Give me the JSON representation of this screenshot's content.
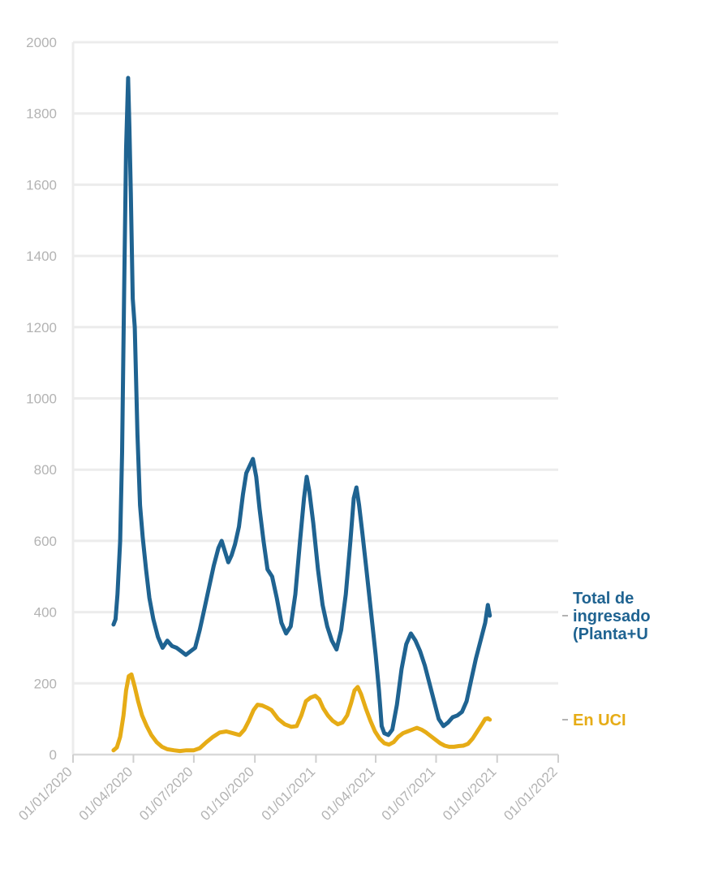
{
  "chart_data": {
    "type": "line",
    "title": "",
    "xlabel": "",
    "ylabel": "",
    "ylim": [
      0,
      2000
    ],
    "xlim": [
      "2020-01-01",
      "2022-01-01"
    ],
    "grid": true,
    "y_ticks": [
      "0",
      "200",
      "400",
      "600",
      "800",
      "1000",
      "1200",
      "1400",
      "1600",
      "1800",
      "2000"
    ],
    "x_ticks": [
      {
        "date": "2020-01-01",
        "label": "01/01/2020"
      },
      {
        "date": "2020-04-01",
        "label": "01/04/2020"
      },
      {
        "date": "2020-07-01",
        "label": "01/07/2020"
      },
      {
        "date": "2020-10-01",
        "label": "01/10/2020"
      },
      {
        "date": "2021-01-01",
        "label": "01/01/2021"
      },
      {
        "date": "2021-04-01",
        "label": "01/04/2021"
      },
      {
        "date": "2021-07-01",
        "label": "01/07/2021"
      },
      {
        "date": "2021-10-01",
        "label": "01/10/2021"
      },
      {
        "date": "2022-01-01",
        "label": "01/01/2022"
      }
    ],
    "series": [
      {
        "name": "Total de ingresados (Planta+UCI)",
        "label_lines": [
          "Total de",
          "ingresado",
          "(Planta+U"
        ],
        "color": "#1f6391",
        "points": [
          {
            "x": "2020-03-02",
            "y": 365
          },
          {
            "x": "2020-03-05",
            "y": 380
          },
          {
            "x": "2020-03-08",
            "y": 450
          },
          {
            "x": "2020-03-12",
            "y": 600
          },
          {
            "x": "2020-03-15",
            "y": 850
          },
          {
            "x": "2020-03-18",
            "y": 1300
          },
          {
            "x": "2020-03-21",
            "y": 1700
          },
          {
            "x": "2020-03-24",
            "y": 1900
          },
          {
            "x": "2020-03-26",
            "y": 1760
          },
          {
            "x": "2020-03-28",
            "y": 1580
          },
          {
            "x": "2020-03-31",
            "y": 1280
          },
          {
            "x": "2020-04-03",
            "y": 1200
          },
          {
            "x": "2020-04-07",
            "y": 900
          },
          {
            "x": "2020-04-11",
            "y": 700
          },
          {
            "x": "2020-04-15",
            "y": 610
          },
          {
            "x": "2020-04-20",
            "y": 520
          },
          {
            "x": "2020-04-25",
            "y": 440
          },
          {
            "x": "2020-05-01",
            "y": 380
          },
          {
            "x": "2020-05-08",
            "y": 330
          },
          {
            "x": "2020-05-15",
            "y": 300
          },
          {
            "x": "2020-05-22",
            "y": 320
          },
          {
            "x": "2020-05-29",
            "y": 305
          },
          {
            "x": "2020-06-05",
            "y": 300
          },
          {
            "x": "2020-06-12",
            "y": 290
          },
          {
            "x": "2020-06-19",
            "y": 280
          },
          {
            "x": "2020-06-26",
            "y": 290
          },
          {
            "x": "2020-07-03",
            "y": 300
          },
          {
            "x": "2020-07-10",
            "y": 350
          },
          {
            "x": "2020-07-17",
            "y": 410
          },
          {
            "x": "2020-07-24",
            "y": 470
          },
          {
            "x": "2020-07-31",
            "y": 530
          },
          {
            "x": "2020-08-07",
            "y": 580
          },
          {
            "x": "2020-08-12",
            "y": 600
          },
          {
            "x": "2020-08-17",
            "y": 570
          },
          {
            "x": "2020-08-22",
            "y": 540
          },
          {
            "x": "2020-08-27",
            "y": 560
          },
          {
            "x": "2020-09-01",
            "y": 590
          },
          {
            "x": "2020-09-07",
            "y": 640
          },
          {
            "x": "2020-09-13",
            "y": 730
          },
          {
            "x": "2020-09-18",
            "y": 790
          },
          {
            "x": "2020-09-23",
            "y": 810
          },
          {
            "x": "2020-09-28",
            "y": 830
          },
          {
            "x": "2020-10-03",
            "y": 780
          },
          {
            "x": "2020-10-08",
            "y": 690
          },
          {
            "x": "2020-10-14",
            "y": 600
          },
          {
            "x": "2020-10-20",
            "y": 520
          },
          {
            "x": "2020-10-27",
            "y": 500
          },
          {
            "x": "2020-11-03",
            "y": 440
          },
          {
            "x": "2020-11-10",
            "y": 370
          },
          {
            "x": "2020-11-17",
            "y": 340
          },
          {
            "x": "2020-11-24",
            "y": 360
          },
          {
            "x": "2020-12-01",
            "y": 450
          },
          {
            "x": "2020-12-08",
            "y": 600
          },
          {
            "x": "2020-12-14",
            "y": 720
          },
          {
            "x": "2020-12-18",
            "y": 780
          },
          {
            "x": "2020-12-22",
            "y": 740
          },
          {
            "x": "2020-12-28",
            "y": 650
          },
          {
            "x": "2021-01-04",
            "y": 520
          },
          {
            "x": "2021-01-11",
            "y": 420
          },
          {
            "x": "2021-01-18",
            "y": 360
          },
          {
            "x": "2021-01-25",
            "y": 320
          },
          {
            "x": "2021-02-01",
            "y": 295
          },
          {
            "x": "2021-02-08",
            "y": 350
          },
          {
            "x": "2021-02-15",
            "y": 450
          },
          {
            "x": "2021-02-22",
            "y": 600
          },
          {
            "x": "2021-02-27",
            "y": 720
          },
          {
            "x": "2021-03-03",
            "y": 750
          },
          {
            "x": "2021-03-07",
            "y": 700
          },
          {
            "x": "2021-03-12",
            "y": 620
          },
          {
            "x": "2021-03-18",
            "y": 520
          },
          {
            "x": "2021-03-25",
            "y": 400
          },
          {
            "x": "2021-04-01",
            "y": 280
          },
          {
            "x": "2021-04-06",
            "y": 180
          },
          {
            "x": "2021-04-10",
            "y": 80
          },
          {
            "x": "2021-04-14",
            "y": 60
          },
          {
            "x": "2021-04-20",
            "y": 55
          },
          {
            "x": "2021-04-26",
            "y": 70
          },
          {
            "x": "2021-05-03",
            "y": 140
          },
          {
            "x": "2021-05-10",
            "y": 240
          },
          {
            "x": "2021-05-17",
            "y": 310
          },
          {
            "x": "2021-05-24",
            "y": 340
          },
          {
            "x": "2021-05-31",
            "y": 320
          },
          {
            "x": "2021-06-07",
            "y": 290
          },
          {
            "x": "2021-06-14",
            "y": 250
          },
          {
            "x": "2021-06-21",
            "y": 200
          },
          {
            "x": "2021-06-28",
            "y": 150
          },
          {
            "x": "2021-07-05",
            "y": 100
          },
          {
            "x": "2021-07-12",
            "y": 80
          },
          {
            "x": "2021-07-19",
            "y": 90
          },
          {
            "x": "2021-07-26",
            "y": 105
          },
          {
            "x": "2021-08-02",
            "y": 110
          },
          {
            "x": "2021-08-09",
            "y": 120
          },
          {
            "x": "2021-08-16",
            "y": 150
          },
          {
            "x": "2021-08-23",
            "y": 210
          },
          {
            "x": "2021-08-30",
            "y": 270
          },
          {
            "x": "2021-09-06",
            "y": 320
          },
          {
            "x": "2021-09-13",
            "y": 370
          },
          {
            "x": "2021-09-17",
            "y": 420
          },
          {
            "x": "2021-09-20",
            "y": 390
          }
        ]
      },
      {
        "name": "En UCI",
        "label_lines": [
          "En UCI"
        ],
        "color": "#e6ac16",
        "points": [
          {
            "x": "2020-03-02",
            "y": 12
          },
          {
            "x": "2020-03-07",
            "y": 20
          },
          {
            "x": "2020-03-12",
            "y": 50
          },
          {
            "x": "2020-03-17",
            "y": 110
          },
          {
            "x": "2020-03-21",
            "y": 180
          },
          {
            "x": "2020-03-25",
            "y": 220
          },
          {
            "x": "2020-03-29",
            "y": 225
          },
          {
            "x": "2020-04-03",
            "y": 190
          },
          {
            "x": "2020-04-08",
            "y": 150
          },
          {
            "x": "2020-04-14",
            "y": 110
          },
          {
            "x": "2020-04-21",
            "y": 80
          },
          {
            "x": "2020-04-28",
            "y": 55
          },
          {
            "x": "2020-05-06",
            "y": 35
          },
          {
            "x": "2020-05-14",
            "y": 22
          },
          {
            "x": "2020-05-22",
            "y": 15
          },
          {
            "x": "2020-06-01",
            "y": 12
          },
          {
            "x": "2020-06-10",
            "y": 10
          },
          {
            "x": "2020-06-20",
            "y": 12
          },
          {
            "x": "2020-07-01",
            "y": 12
          },
          {
            "x": "2020-07-10",
            "y": 18
          },
          {
            "x": "2020-07-20",
            "y": 35
          },
          {
            "x": "2020-07-30",
            "y": 50
          },
          {
            "x": "2020-08-09",
            "y": 62
          },
          {
            "x": "2020-08-19",
            "y": 65
          },
          {
            "x": "2020-08-29",
            "y": 60
          },
          {
            "x": "2020-09-08",
            "y": 55
          },
          {
            "x": "2020-09-15",
            "y": 70
          },
          {
            "x": "2020-09-22",
            "y": 95
          },
          {
            "x": "2020-09-29",
            "y": 125
          },
          {
            "x": "2020-10-05",
            "y": 140
          },
          {
            "x": "2020-10-12",
            "y": 138
          },
          {
            "x": "2020-10-19",
            "y": 132
          },
          {
            "x": "2020-10-26",
            "y": 125
          },
          {
            "x": "2020-11-05",
            "y": 100
          },
          {
            "x": "2020-11-15",
            "y": 85
          },
          {
            "x": "2020-11-25",
            "y": 78
          },
          {
            "x": "2020-12-03",
            "y": 80
          },
          {
            "x": "2020-12-10",
            "y": 110
          },
          {
            "x": "2020-12-17",
            "y": 150
          },
          {
            "x": "2020-12-24",
            "y": 160
          },
          {
            "x": "2020-12-31",
            "y": 165
          },
          {
            "x": "2021-01-06",
            "y": 155
          },
          {
            "x": "2021-01-12",
            "y": 130
          },
          {
            "x": "2021-01-19",
            "y": 110
          },
          {
            "x": "2021-01-26",
            "y": 95
          },
          {
            "x": "2021-02-03",
            "y": 85
          },
          {
            "x": "2021-02-10",
            "y": 90
          },
          {
            "x": "2021-02-17",
            "y": 110
          },
          {
            "x": "2021-02-23",
            "y": 145
          },
          {
            "x": "2021-02-28",
            "y": 180
          },
          {
            "x": "2021-03-05",
            "y": 190
          },
          {
            "x": "2021-03-10",
            "y": 170
          },
          {
            "x": "2021-03-17",
            "y": 130
          },
          {
            "x": "2021-03-24",
            "y": 95
          },
          {
            "x": "2021-03-31",
            "y": 65
          },
          {
            "x": "2021-04-07",
            "y": 45
          },
          {
            "x": "2021-04-14",
            "y": 32
          },
          {
            "x": "2021-04-21",
            "y": 28
          },
          {
            "x": "2021-04-28",
            "y": 35
          },
          {
            "x": "2021-05-05",
            "y": 50
          },
          {
            "x": "2021-05-12",
            "y": 60
          },
          {
            "x": "2021-05-19",
            "y": 65
          },
          {
            "x": "2021-05-26",
            "y": 70
          },
          {
            "x": "2021-06-02",
            "y": 75
          },
          {
            "x": "2021-06-09",
            "y": 70
          },
          {
            "x": "2021-06-16",
            "y": 62
          },
          {
            "x": "2021-06-23",
            "y": 52
          },
          {
            "x": "2021-06-30",
            "y": 42
          },
          {
            "x": "2021-07-07",
            "y": 32
          },
          {
            "x": "2021-07-14",
            "y": 25
          },
          {
            "x": "2021-07-21",
            "y": 22
          },
          {
            "x": "2021-07-28",
            "y": 22
          },
          {
            "x": "2021-08-04",
            "y": 24
          },
          {
            "x": "2021-08-11",
            "y": 25
          },
          {
            "x": "2021-08-18",
            "y": 30
          },
          {
            "x": "2021-08-25",
            "y": 45
          },
          {
            "x": "2021-09-01",
            "y": 65
          },
          {
            "x": "2021-09-08",
            "y": 85
          },
          {
            "x": "2021-09-13",
            "y": 100
          },
          {
            "x": "2021-09-17",
            "y": 102
          },
          {
            "x": "2021-09-20",
            "y": 98
          }
        ]
      }
    ]
  }
}
